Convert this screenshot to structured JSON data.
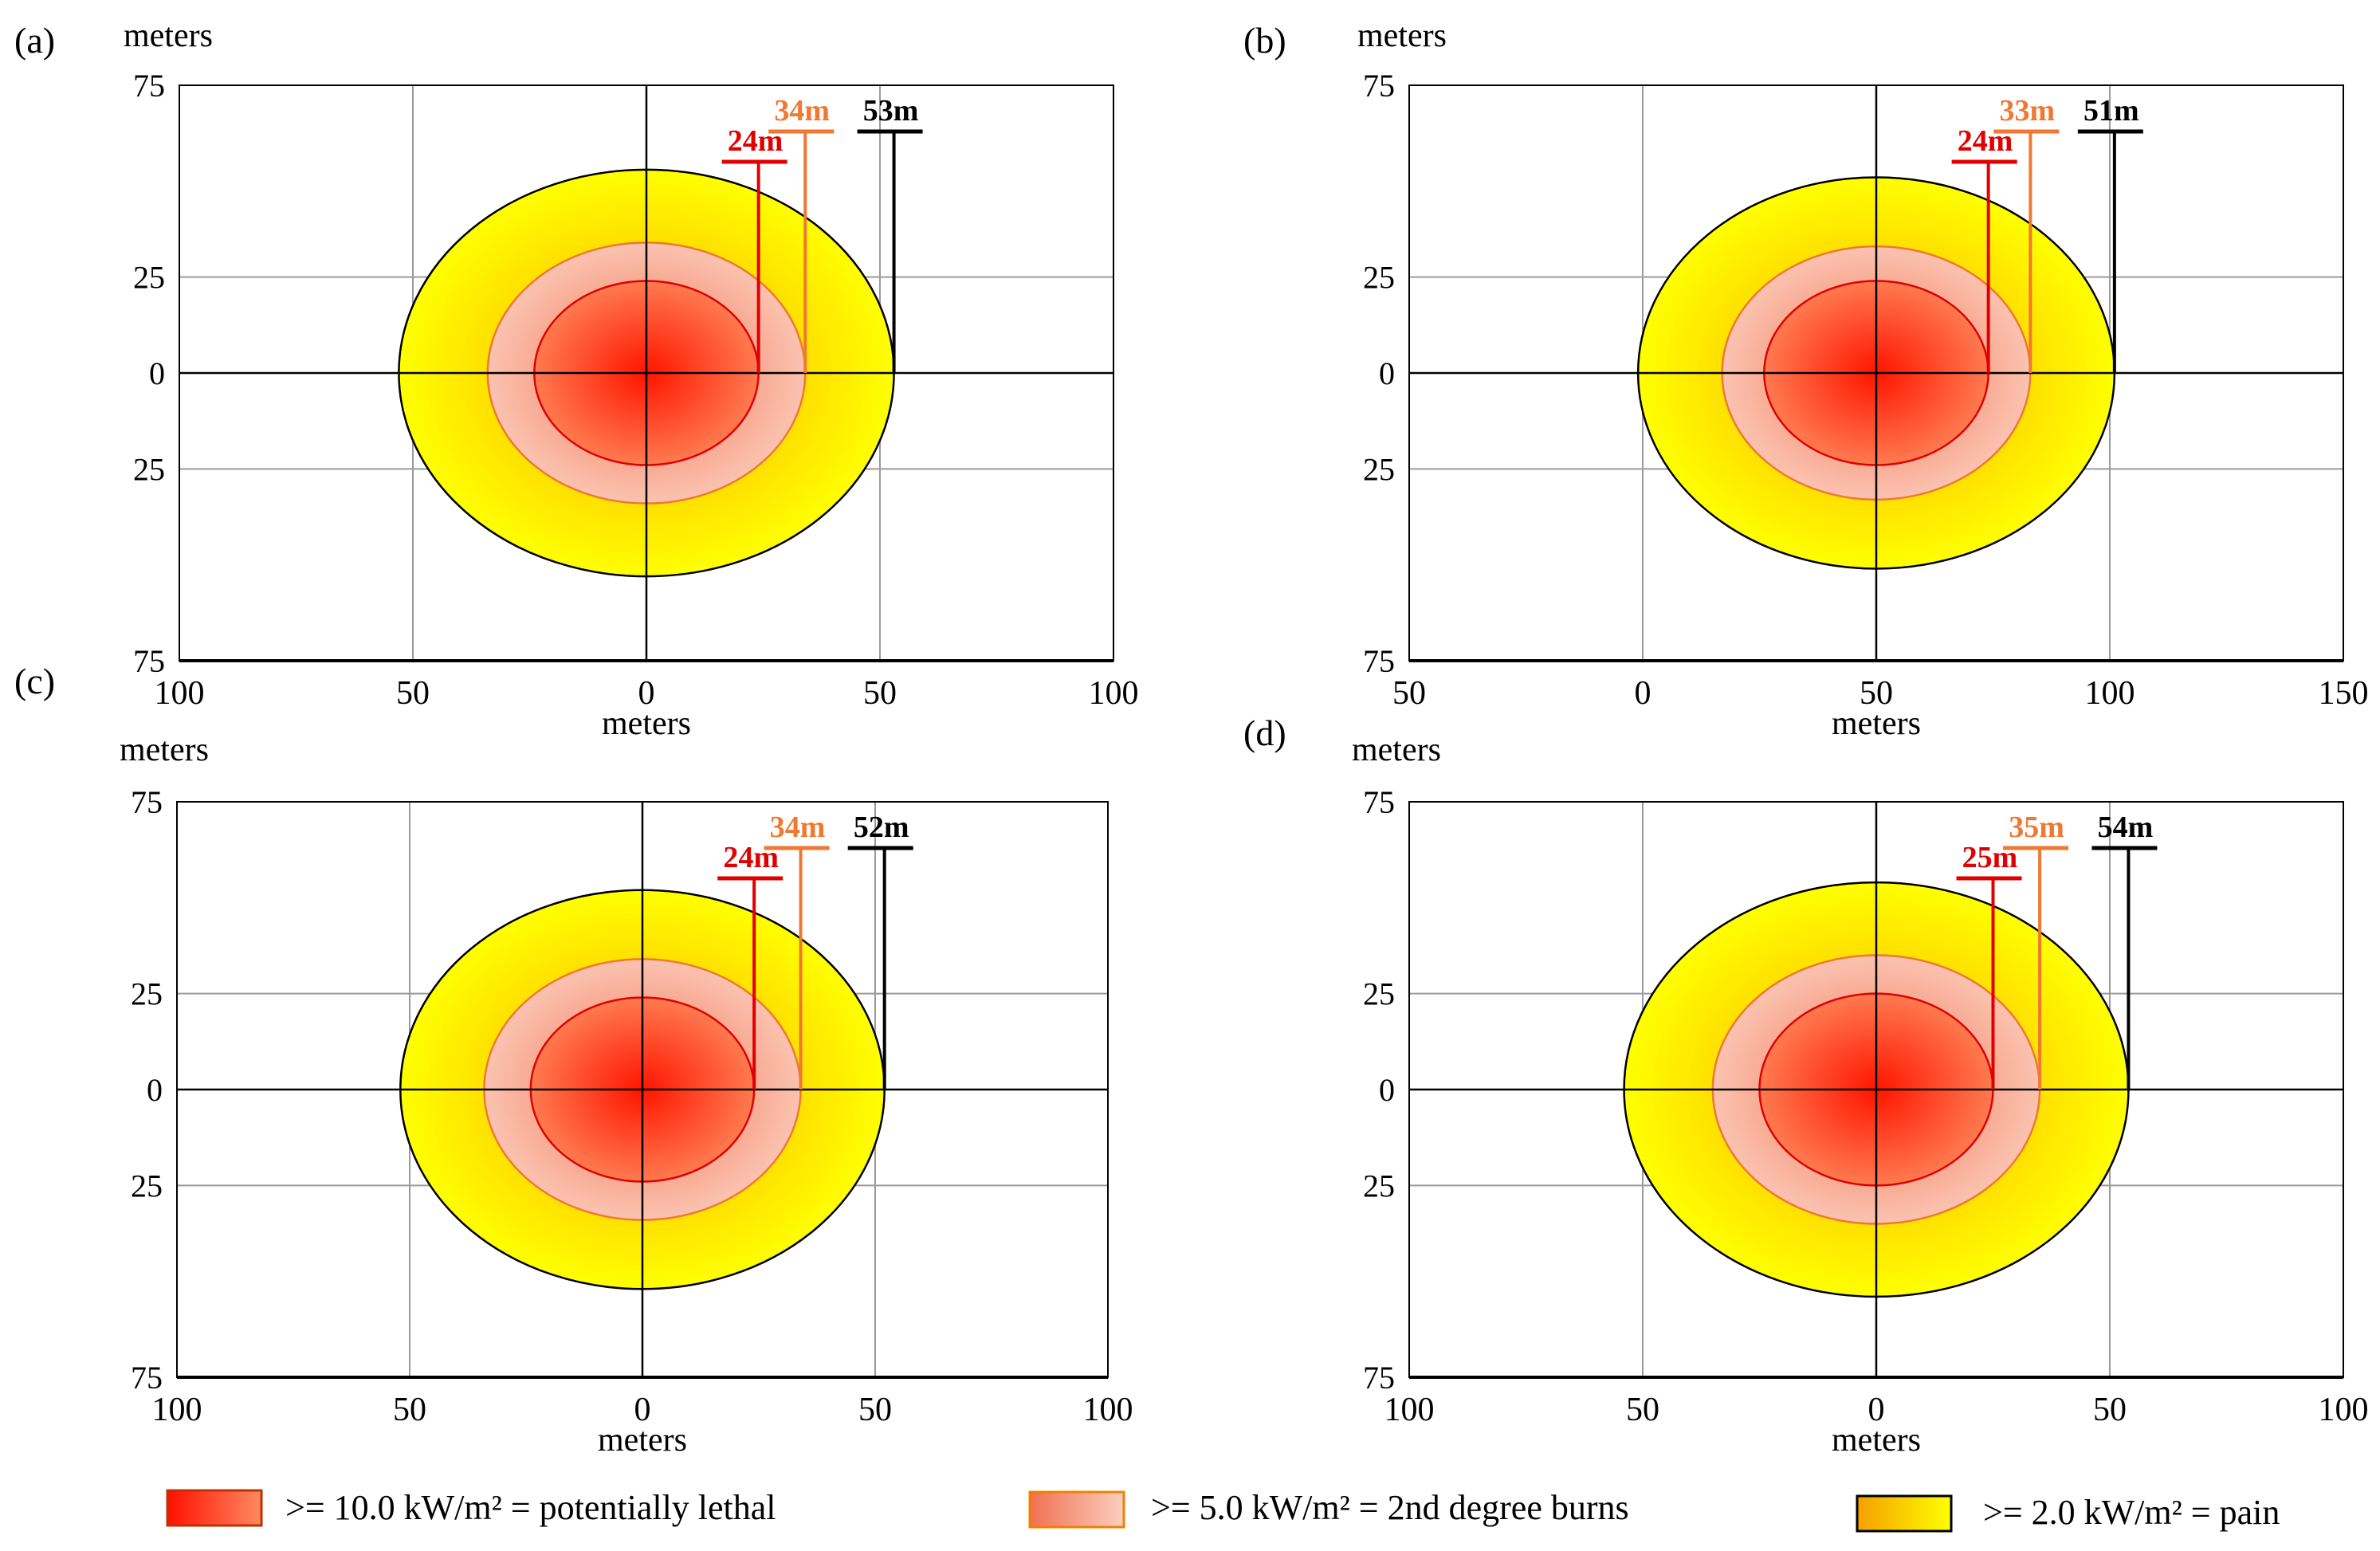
{
  "panels": [
    {
      "label": "(a)",
      "chart_data": {
        "type": "contour",
        "xlabel": "meters",
        "ylabel": "meters",
        "xlim": [
          -100,
          100
        ],
        "ylim": [
          -75,
          75
        ],
        "xticks": [
          -100,
          -50,
          0,
          50,
          100
        ],
        "xtick_labels": [
          "100",
          "50",
          "0",
          "50",
          "100"
        ],
        "yticks": [
          75,
          25,
          0,
          -25,
          -75
        ],
        "ytick_labels": [
          "75",
          "25",
          "0",
          "25",
          "75"
        ],
        "center": [
          0,
          0
        ],
        "zones": [
          {
            "level": "2.0",
            "radius": 53,
            "label": "53m"
          },
          {
            "level": "5.0",
            "radius": 34,
            "label": "34m"
          },
          {
            "level": "10.0",
            "radius": 24,
            "label": "24m"
          }
        ]
      }
    },
    {
      "label": "(b)",
      "chart_data": {
        "type": "contour",
        "xlabel": "meters",
        "ylabel": "meters",
        "xlim": [
          -50,
          150
        ],
        "ylim": [
          -75,
          75
        ],
        "xticks": [
          -50,
          0,
          50,
          100,
          150
        ],
        "xtick_labels": [
          "50",
          "0",
          "50",
          "100",
          "150"
        ],
        "yticks": [
          75,
          25,
          0,
          -25,
          -75
        ],
        "ytick_labels": [
          "75",
          "25",
          "0",
          "25",
          "75"
        ],
        "center": [
          50,
          0
        ],
        "zones": [
          {
            "level": "2.0",
            "radius": 51,
            "label": "51m"
          },
          {
            "level": "5.0",
            "radius": 33,
            "label": "33m"
          },
          {
            "level": "10.0",
            "radius": 24,
            "label": "24m"
          }
        ]
      }
    },
    {
      "label": "(c)",
      "chart_data": {
        "type": "contour",
        "xlabel": "meters",
        "ylabel": "meters",
        "xlim": [
          -100,
          100
        ],
        "ylim": [
          -75,
          75
        ],
        "xticks": [
          -100,
          -50,
          0,
          50,
          100
        ],
        "xtick_labels": [
          "100",
          "50",
          "0",
          "50",
          "100"
        ],
        "yticks": [
          75,
          25,
          0,
          -25,
          -75
        ],
        "ytick_labels": [
          "75",
          "25",
          "0",
          "25",
          "75"
        ],
        "center": [
          0,
          0
        ],
        "zones": [
          {
            "level": "2.0",
            "radius": 52,
            "label": "52m"
          },
          {
            "level": "5.0",
            "radius": 34,
            "label": "34m"
          },
          {
            "level": "10.0",
            "radius": 24,
            "label": "24m"
          }
        ]
      }
    },
    {
      "label": "(d)",
      "chart_data": {
        "type": "contour",
        "xlabel": "meters",
        "ylabel": "meters",
        "xlim": [
          -100,
          100
        ],
        "ylim": [
          -75,
          75
        ],
        "xticks": [
          -100,
          -50,
          0,
          50,
          100
        ],
        "xtick_labels": [
          "100",
          "50",
          "0",
          "50",
          "100"
        ],
        "yticks": [
          75,
          25,
          0,
          -25,
          -75
        ],
        "ytick_labels": [
          "75",
          "25",
          "0",
          "25",
          "75"
        ],
        "center": [
          0,
          0
        ],
        "zones": [
          {
            "level": "2.0",
            "radius": 54,
            "label": "54m"
          },
          {
            "level": "5.0",
            "radius": 35,
            "label": "35m"
          },
          {
            "level": "10.0",
            "radius": 25,
            "label": "25m"
          }
        ]
      }
    }
  ],
  "legend": [
    {
      "label": ">= 10.0 kW/m² = potentially  lethal",
      "color": "#ff2000"
    },
    {
      "label": ">= 5.0 kW/m² = 2nd degree burns",
      "color": "#f8a890"
    },
    {
      "label": ">= 2.0 kW/m² = pain",
      "color": "#ffff00"
    }
  ],
  "colors": {
    "lethal_line": "#e00000",
    "burns_line": "#f07830",
    "pain_line": "#000000",
    "grid": "#9a9a9a",
    "axis": "#000000"
  }
}
